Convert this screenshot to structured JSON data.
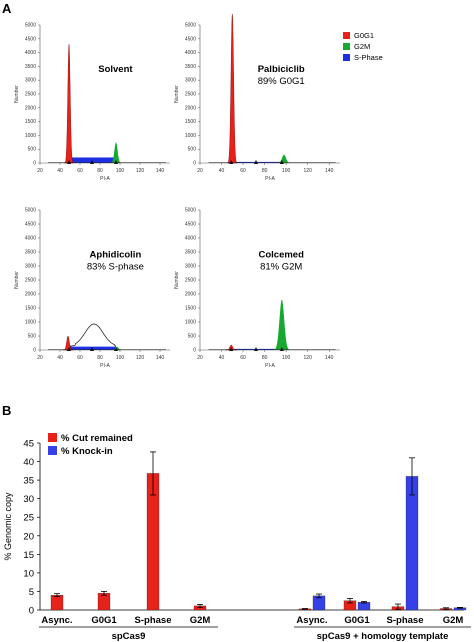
{
  "panel_a": {
    "letter": "A",
    "legend": [
      {
        "name": "G0G1",
        "color": "#e8211b"
      },
      {
        "name": "G2M",
        "color": "#16a82f"
      },
      {
        "name": "S-Phase",
        "color": "#1d2ee3"
      }
    ]
  },
  "panel_b": {
    "letter": "B"
  },
  "chart_data": [
    {
      "type": "area",
      "title": "Solvent",
      "subtitle": "",
      "xlabel": "PI-A",
      "ylabel": "Number",
      "xlim": [
        20,
        150
      ],
      "ylim": [
        0,
        5000
      ],
      "x_ticks": [
        20,
        40,
        60,
        80,
        100,
        120,
        140
      ],
      "y_ticks": [
        0,
        500,
        1000,
        1500,
        2000,
        2500,
        3000,
        3500,
        4000,
        4500,
        5000
      ],
      "series": [
        {
          "name": "G0G1",
          "peaks": [
            {
              "center": 49,
              "height": 4300,
              "width": 1.2
            }
          ]
        },
        {
          "name": "G2M",
          "peaks": [
            {
              "center": 96,
              "height": 750,
              "width": 1.6
            }
          ]
        },
        {
          "name": "S-Phase",
          "baseline": 200,
          "from": 51,
          "to": 94
        }
      ]
    },
    {
      "type": "area",
      "title": "Palbiciclib",
      "subtitle": "89% G0G1",
      "xlabel": "PI-A",
      "ylabel": "Number",
      "xlim": [
        20,
        150
      ],
      "ylim": [
        0,
        5000
      ],
      "x_ticks": [
        20,
        40,
        60,
        80,
        100,
        120,
        140
      ],
      "y_ticks": [
        0,
        500,
        1000,
        1500,
        2000,
        2500,
        3000,
        3500,
        4000,
        4500,
        5000
      ],
      "series": [
        {
          "name": "G0G1",
          "peaks": [
            {
              "center": 50,
              "height": 5400,
              "width": 1.2
            }
          ]
        },
        {
          "name": "G2M",
          "peaks": [
            {
              "center": 98,
              "height": 300,
              "width": 1.8
            }
          ]
        },
        {
          "name": "S-Phase",
          "baseline": 40,
          "from": 53,
          "to": 95
        }
      ]
    },
    {
      "type": "area",
      "title": "Aphidicolin",
      "subtitle": "83% S-phase",
      "xlabel": "PI-A",
      "ylabel": "Number",
      "xlim": [
        20,
        150
      ],
      "ylim": [
        0,
        5000
      ],
      "x_ticks": [
        20,
        40,
        60,
        80,
        100,
        120,
        140
      ],
      "y_ticks": [
        0,
        500,
        1000,
        1500,
        2000,
        2500,
        3000,
        3500,
        4000,
        4500,
        5000
      ],
      "series": [
        {
          "name": "G0G1",
          "peaks": [
            {
              "center": 48,
              "height": 500,
              "width": 1.3
            }
          ]
        },
        {
          "name": "G2M",
          "peaks": [
            {
              "center": 97,
              "height": 120,
              "width": 1.6
            }
          ]
        },
        {
          "name": "S-Phase",
          "baseline": 120,
          "from": 50,
          "to": 95
        },
        {
          "name": "Total",
          "peaks": [
            {
              "center": 74,
              "height": 800,
              "width": 9
            }
          ],
          "baseline": 130
        }
      ]
    },
    {
      "type": "area",
      "title": "Colcemed",
      "subtitle": "81% G2M",
      "xlabel": "PI-A",
      "ylabel": "Number",
      "xlim": [
        20,
        150
      ],
      "ylim": [
        0,
        5000
      ],
      "x_ticks": [
        20,
        40,
        60,
        80,
        100,
        120,
        140
      ],
      "y_ticks": [
        0,
        500,
        1000,
        1500,
        2000,
        2500,
        3000,
        3500,
        4000,
        4500,
        5000
      ],
      "series": [
        {
          "name": "G0G1",
          "peaks": [
            {
              "center": 49,
              "height": 180,
              "width": 1.3
            }
          ]
        },
        {
          "name": "G2M",
          "peaks": [
            {
              "center": 96,
              "height": 1800,
              "width": 2.2
            }
          ]
        },
        {
          "name": "S-Phase",
          "baseline": 40,
          "from": 51,
          "to": 94
        }
      ]
    },
    {
      "type": "bar",
      "ylabel": "% Genomic copy",
      "ylim": [
        0,
        45
      ],
      "y_ticks": [
        0,
        5,
        10,
        15,
        20,
        25,
        30,
        35,
        40,
        45
      ],
      "legend_position": "top-left",
      "groups": [
        {
          "label": "spCas9",
          "categories": [
            "Async.",
            "G0G1",
            "S-phase",
            "G2M"
          ]
        },
        {
          "label": "spCas9 + homology template",
          "categories": [
            "Async.",
            "G0G1",
            "S-phase",
            "G2M"
          ]
        }
      ],
      "series": [
        {
          "name": "% Cut remained",
          "color": "#e8211b",
          "values": [
            [
              4.0,
              4.5,
              36.8,
              1.1
            ],
            [
              0.3,
              2.5,
              0.9,
              0.4
            ]
          ],
          "errors": [
            [
              0.4,
              0.5,
              5.8,
              0.4
            ],
            [
              0.1,
              0.6,
              0.7,
              0.2
            ]
          ]
        },
        {
          "name": "% Knock-in",
          "color": "#3541e6",
          "values": [
            [
              null,
              null,
              null,
              null
            ],
            [
              3.8,
              2.1,
              36.0,
              0.6
            ]
          ],
          "errors": [
            [
              null,
              null,
              null,
              null
            ],
            [
              0.5,
              0.2,
              5.0,
              0.1
            ]
          ]
        }
      ]
    }
  ]
}
